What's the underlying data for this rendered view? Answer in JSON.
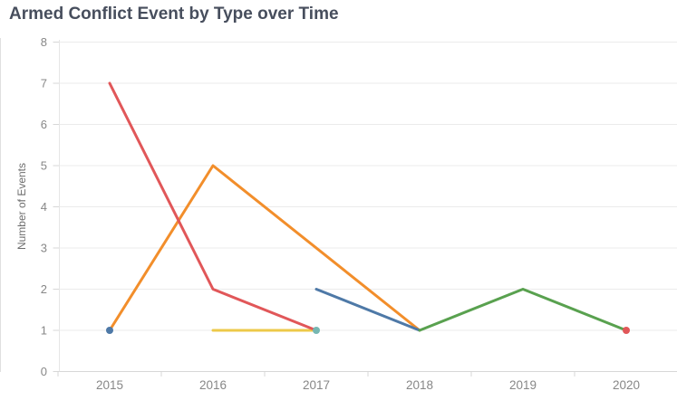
{
  "title": "Armed Conflict Event by Type over Time",
  "chart_data": {
    "type": "line",
    "title": "Armed Conflict Event by Type over Time",
    "xlabel": "",
    "ylabel": "Number of Events",
    "x_ticks": [
      2015,
      2016,
      2017,
      2018,
      2019,
      2020
    ],
    "y_ticks": [
      0,
      1,
      2,
      3,
      4,
      5,
      6,
      7,
      8
    ],
    "ylim": [
      0,
      8
    ],
    "grid": true,
    "legend": "none",
    "series": [
      {
        "name": "yellow-series",
        "color": "#edc949",
        "segments": [
          [
            [
              2016,
              1
            ],
            [
              2017,
              1
            ]
          ]
        ],
        "isolated_points": []
      },
      {
        "name": "orange-series",
        "color": "#f28e2b",
        "segments": [
          [
            [
              2015,
              1
            ],
            [
              2016,
              5
            ],
            [
              2018,
              1
            ]
          ]
        ],
        "isolated_points": []
      },
      {
        "name": "red-series",
        "color": "#e15759",
        "segments": [
          [
            [
              2015,
              7
            ],
            [
              2016,
              2
            ],
            [
              2017,
              1
            ]
          ]
        ],
        "isolated_points": [
          [
            2020,
            1
          ]
        ]
      },
      {
        "name": "blue-series",
        "color": "#4e79a7",
        "segments": [
          [
            [
              2017,
              2
            ],
            [
              2018,
              1
            ]
          ]
        ],
        "isolated_points": [
          [
            2015,
            1
          ]
        ]
      },
      {
        "name": "green-series",
        "color": "#59a14f",
        "segments": [
          [
            [
              2018,
              1
            ],
            [
              2019,
              2
            ],
            [
              2020,
              1
            ]
          ]
        ],
        "isolated_points": []
      },
      {
        "name": "teal-series",
        "color": "#76b7b2",
        "segments": [],
        "isolated_points": [
          [
            2017,
            1
          ]
        ]
      }
    ]
  },
  "style_colors": {
    "gridline": "#ebebeb",
    "axis_line": "#d7d7d7",
    "plot_border": "#e6e6e6",
    "tick": "#d7d7d7",
    "tick_label": "#878787",
    "title_text": "#474e5d",
    "y_axis_title_text": "#6e6e6e"
  }
}
